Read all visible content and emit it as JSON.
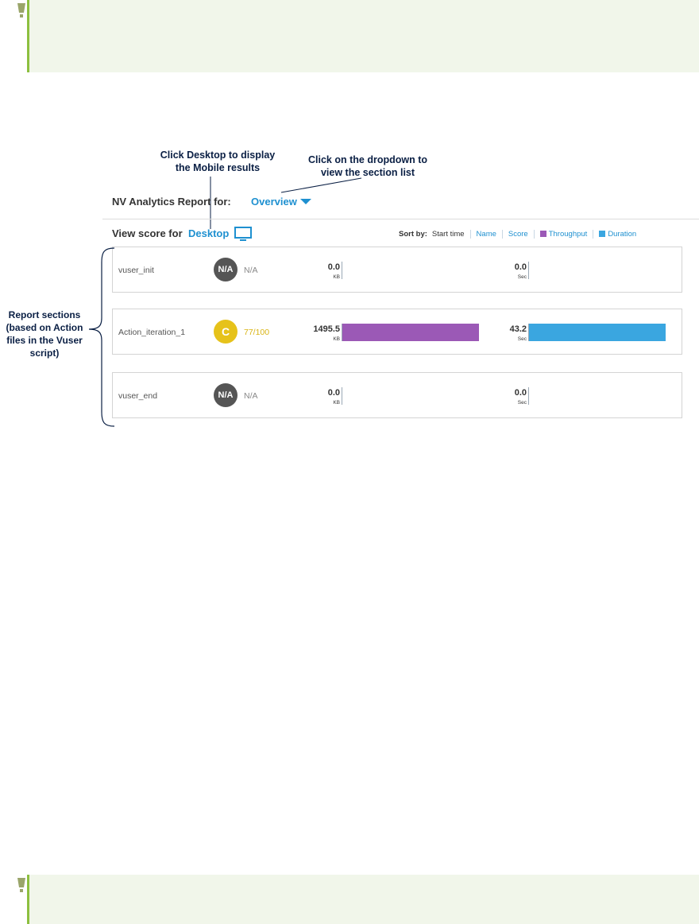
{
  "callouts": {
    "desktop": [
      "Click Desktop to display",
      "the Mobile results"
    ],
    "dropdown": [
      "Click on the dropdown to",
      "view the section list"
    ],
    "sections": [
      "Report sections",
      "(based on Action",
      "files in the Vuser",
      "script)"
    ]
  },
  "header": {
    "title": "NV Analytics Report for:",
    "section_dropdown": "Overview"
  },
  "view": {
    "label": "View score for",
    "device": "Desktop"
  },
  "sort": {
    "label": "Sort by:",
    "options": [
      "Start time",
      "Name",
      "Score",
      "Throughput",
      "Duration"
    ]
  },
  "rows": [
    {
      "name": "vuser_init",
      "grade": "N/A",
      "score": "N/A",
      "throughput": "0.0",
      "throughput_unit": "KB",
      "duration": "0.0",
      "duration_unit": "Sec",
      "throughput_fraction": 0,
      "duration_fraction": 0
    },
    {
      "name": "Action_iteration_1",
      "grade": "C",
      "score": "77/100",
      "throughput": "1495.5",
      "throughput_unit": "KB",
      "duration": "43.2",
      "duration_unit": "Sec",
      "throughput_fraction": 1,
      "duration_fraction": 1
    },
    {
      "name": "vuser_end",
      "grade": "N/A",
      "score": "N/A",
      "throughput": "0.0",
      "throughput_unit": "KB",
      "duration": "0.0",
      "duration_unit": "Sec",
      "throughput_fraction": 0,
      "duration_fraction": 0
    }
  ],
  "colors": {
    "accent": "#1e90d0",
    "throughput": "#9b59b6",
    "duration": "#3aa6e0",
    "grade_na": "#555555",
    "grade_c": "#e6c21a",
    "tip_bg": "#f1f6ea",
    "tip_border": "#8cbf3f"
  }
}
